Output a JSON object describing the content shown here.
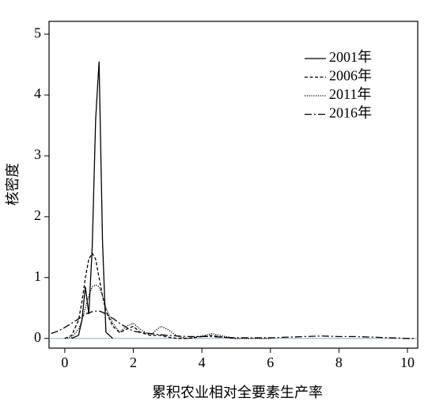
{
  "chart_data": {
    "type": "line",
    "xlabel": "累积农业相对全要素生产率",
    "ylabel": "核密度",
    "x": [
      -0.4,
      -0.2,
      0,
      0.2,
      0.4,
      0.5,
      0.6,
      0.7,
      0.8,
      0.9,
      1.0,
      1.1,
      1.2,
      1.4,
      1.6,
      1.8,
      2.0,
      2.2,
      2.5,
      2.8,
      3.0,
      3.3,
      3.6,
      4.0,
      4.3,
      4.6,
      5.0,
      5.5,
      6,
      6.5,
      7,
      7.5,
      8,
      8.5,
      9,
      9.5,
      10,
      10.2
    ],
    "series": [
      {
        "name": "2001年",
        "color": "#000000",
        "dash": "solid",
        "values": [
          null,
          null,
          null,
          0,
          0.05,
          0.3,
          0.85,
          0.4,
          1.5,
          3.6,
          4.55,
          1.6,
          0.1,
          0,
          null,
          null,
          null,
          null,
          null,
          null,
          null,
          null,
          null,
          null,
          null,
          null,
          null,
          null,
          null,
          null,
          null,
          null,
          null,
          null,
          null,
          null,
          null,
          null
        ]
      },
      {
        "name": "2006年",
        "color": "#000000",
        "dash": "dashed",
        "values": [
          null,
          null,
          0,
          0.05,
          0.3,
          0.6,
          1.0,
          1.3,
          1.4,
          1.3,
          1.0,
          0.7,
          0.45,
          0.2,
          0.1,
          0.15,
          0.2,
          0.1,
          0.05,
          0.05,
          0.02,
          0,
          0,
          0.03,
          0.05,
          0.02,
          0,
          null,
          null,
          null,
          null,
          null,
          null,
          null,
          null,
          null,
          null,
          null
        ]
      },
      {
        "name": "2011年",
        "color": "#000000",
        "dash": "dotted",
        "values": [
          null,
          null,
          0,
          0.02,
          0.15,
          0.3,
          0.5,
          0.7,
          0.85,
          0.88,
          0.85,
          0.7,
          0.5,
          0.25,
          0.1,
          0.2,
          0.25,
          0.15,
          0.05,
          0.2,
          0.15,
          0.03,
          0,
          0.04,
          0.08,
          0.04,
          0,
          0,
          0,
          null,
          null,
          null,
          null,
          null,
          null,
          null,
          null,
          null
        ]
      },
      {
        "name": "2016年",
        "color": "#000000",
        "dash": "dashdot",
        "values": [
          0.08,
          0.12,
          0.18,
          0.25,
          0.32,
          0.36,
          0.4,
          0.42,
          0.44,
          0.45,
          0.45,
          0.43,
          0.4,
          0.33,
          0.25,
          0.18,
          0.12,
          0.1,
          0.08,
          0.06,
          0.05,
          0.04,
          0.03,
          0.03,
          0.03,
          0.02,
          0.01,
          0.01,
          0.01,
          0.02,
          0.03,
          0.04,
          0.03,
          0.03,
          0.02,
          0.01,
          0,
          0
        ]
      }
    ],
    "xlim": [
      -0.46,
      10.3
    ],
    "ylim": [
      -0.16,
      5.21
    ],
    "xticks": [
      0,
      2,
      4,
      6,
      8,
      10
    ],
    "yticks": [
      0,
      1,
      2,
      3,
      4,
      5
    ],
    "legend": "upper-right"
  }
}
